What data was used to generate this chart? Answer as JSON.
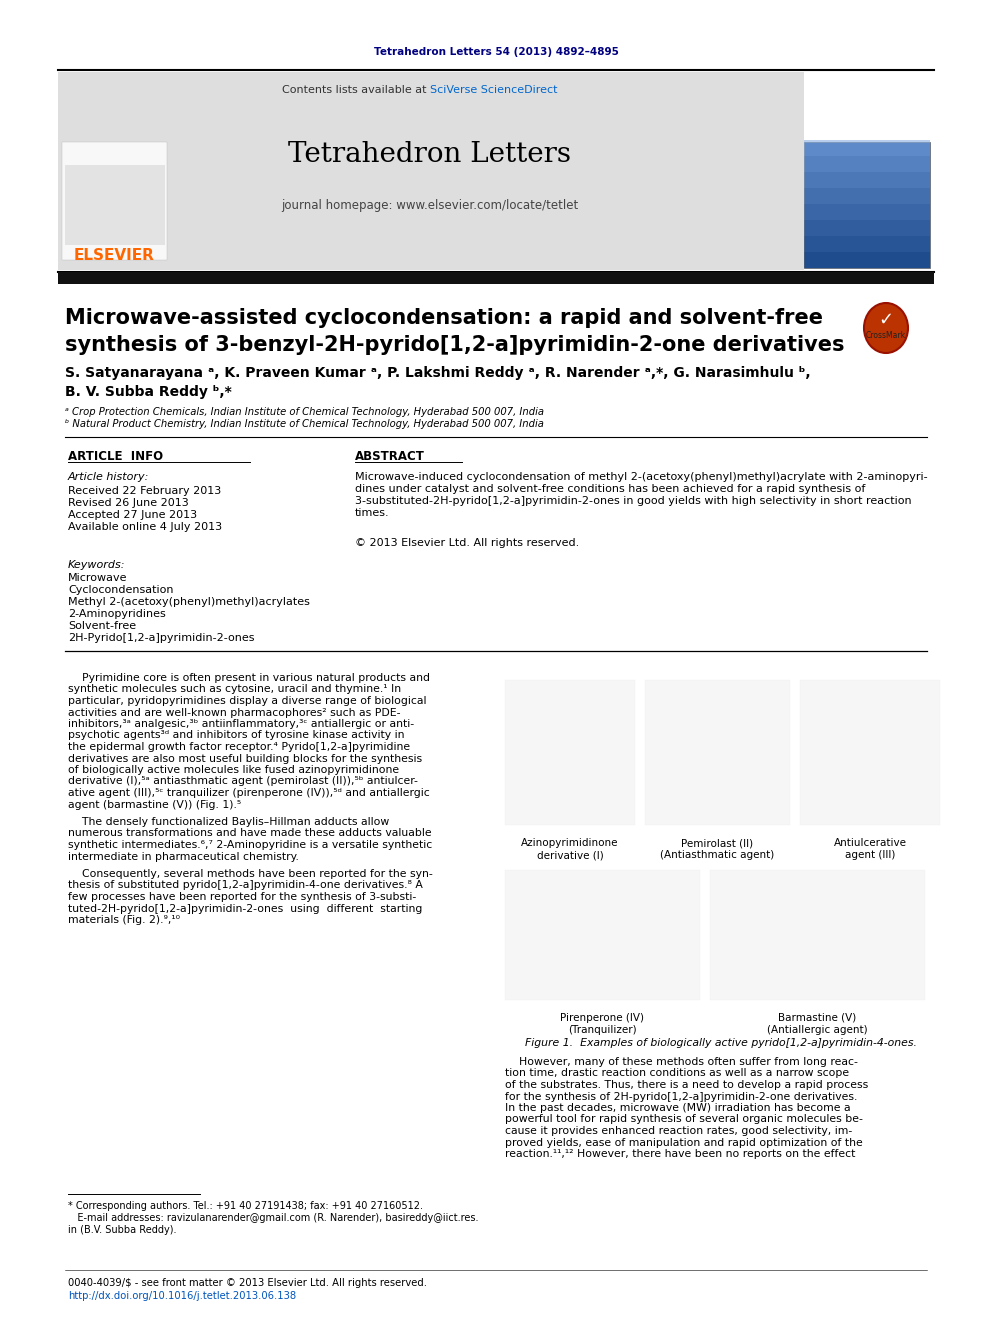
{
  "page_bg": "#ffffff",
  "header_journal_text": "Tetrahedron Letters 54 (2013) 4892–4895",
  "header_journal_color": "#000080",
  "journal_name": "Tetrahedron Letters",
  "journal_homepage": "journal homepage: www.elsevier.com/locate/tetlet",
  "contents_pre": "Contents lists available at ",
  "sciverse_text": "SciVerse ScienceDirect",
  "sciverse_color": "#0066CC",
  "elsevier_color": "#FF6600",
  "header_bg": "#DEDEDE",
  "title_line1": "Microwave-assisted cyclocondensation: a rapid and solvent-free",
  "title_line2": "synthesis of 3-benzyl-2H-pyrido[1,2-a]pyrimidin-2-one derivatives",
  "authors_line1": "S. Satyanarayana ᵃ, K. Praveen Kumar ᵃ, P. Lakshmi Reddy ᵃ, R. Narender ᵃ,*, G. Narasimhulu ᵇ,",
  "authors_line2": "B. V. Subba Reddy ᵇ,*",
  "affil_a": "ᵃ Crop Protection Chemicals, Indian Institute of Chemical Technology, Hyderabad 500 007, India",
  "affil_b": "ᵇ Natural Product Chemistry, Indian Institute of Chemical Technology, Hyderabad 500 007, India",
  "section_article_info": "ARTICLE  INFO",
  "section_abstract": "ABSTRACT",
  "article_history_label": "Article history:",
  "received": "Received 22 February 2013",
  "revised": "Revised 26 June 2013",
  "accepted": "Accepted 27 June 2013",
  "available": "Available online 4 July 2013",
  "keywords_label": "Keywords:",
  "keywords": [
    "Microwave",
    "Cyclocondensation",
    "Methyl 2-(acetoxy(phenyl)methyl)acrylates",
    "2-Aminopyridines",
    "Solvent-free",
    "2H-Pyrido[1,2-a]pyrimidin-2-ones"
  ],
  "abstract_lines": [
    "Microwave-induced cyclocondensation of methyl 2-(acetoxy(phenyl)methyl)acrylate with 2-aminopyri-",
    "dines under catalyst and solvent-free conditions has been achieved for a rapid synthesis of",
    "3-substituted-2H-pyrido[1,2-a]pyrimidin-2-ones in good yields with high selectivity in short reaction",
    "times."
  ],
  "copyright_text": "© 2013 Elsevier Ltd. All rights reserved.",
  "body1_lines": [
    "    Pyrimidine core is often present in various natural products and",
    "synthetic molecules such as cytosine, uracil and thymine.¹ In",
    "particular, pyridopyrimidines display a diverse range of biological",
    "activities and are well-known pharmacophores² such as PDE-",
    "inhibitors,³ᵃ analgesic,³ᵇ antiinflammatory,³ᶜ antiallergic or anti-",
    "psychotic agents³ᵈ and inhibitors of tyrosine kinase activity in",
    "the epidermal growth factor receptor.⁴ Pyrido[1,2-a]pyrimidine",
    "derivatives are also most useful building blocks for the synthesis",
    "of biologically active molecules like fused azinopyrimidinone",
    "derivative (I),⁵ᵃ antiasthmatic agent (pemirolast (II)),⁵ᵇ antiulcer-",
    "ative agent (III),⁵ᶜ tranquilizer (pirenperone (IV)),⁵ᵈ and antiallergic",
    "agent (barmastine (V)) (Fig. 1).⁵"
  ],
  "body2_lines": [
    "    The densely functionalized Baylis–Hillman adducts allow",
    "numerous transformations and have made these adducts valuable",
    "synthetic intermediates.⁶,⁷ 2-Aminopyridine is a versatile synthetic",
    "intermediate in pharmaceutical chemistry."
  ],
  "body3_lines": [
    "    Consequently, several methods have been reported for the syn-",
    "thesis of substituted pyrido[1,2-a]pyrimidin-4-one derivatives.⁸ A",
    "few processes have been reported for the synthesis of 3-substi-",
    "tuted-2H-pyrido[1,2-a]pyrimidin-2-ones  using  different  starting",
    "materials (Fig. 2).⁹,¹⁰"
  ],
  "figure1_caption": "Figure 1.  Examples of biologically active pyrido[1,2-a]pyrimidin-4-ones.",
  "struct_labels_top": [
    [
      "Azinopyrimidinone",
      "derivative (I)"
    ],
    [
      "Pemirolast (II)",
      "(Antiasthmatic agent)"
    ],
    [
      "Antiulcerative",
      "agent (III)"
    ]
  ],
  "struct_labels_bot": [
    [
      "Pirenperone (IV)",
      "(Tranquilizer)"
    ],
    [
      "Barmastine (V)",
      "(Antiallergic agent)"
    ]
  ],
  "col2_lines": [
    "    However, many of these methods often suffer from long reac-",
    "tion time, drastic reaction conditions as well as a narrow scope",
    "of the substrates. Thus, there is a need to develop a rapid process",
    "for the synthesis of 2H-pyrido[1,2-a]pyrimidin-2-one derivatives.",
    "In the past decades, microwave (MW) irradiation has become a",
    "powerful tool for rapid synthesis of several organic molecules be-",
    "cause it provides enhanced reaction rates, good selectivity, im-",
    "proved yields, ease of manipulation and rapid optimization of the",
    "reaction.¹¹,¹² However, there have been no reports on the effect"
  ],
  "footnote1": "* Corresponding authors. Tel.: +91 40 27191438; fax: +91 40 27160512.",
  "footnote2": "   E-mail addresses: ravizulanarender@gmail.com (R. Narender), basireddy@iict.res.",
  "footnote3": "in (B.V. Subba Reddy).",
  "footer_issn": "0040-4039/$ - see front matter © 2013 Elsevier Ltd. All rights reserved.",
  "footer_doi": "http://dx.doi.org/10.1016/j.tetlet.2013.06.138"
}
